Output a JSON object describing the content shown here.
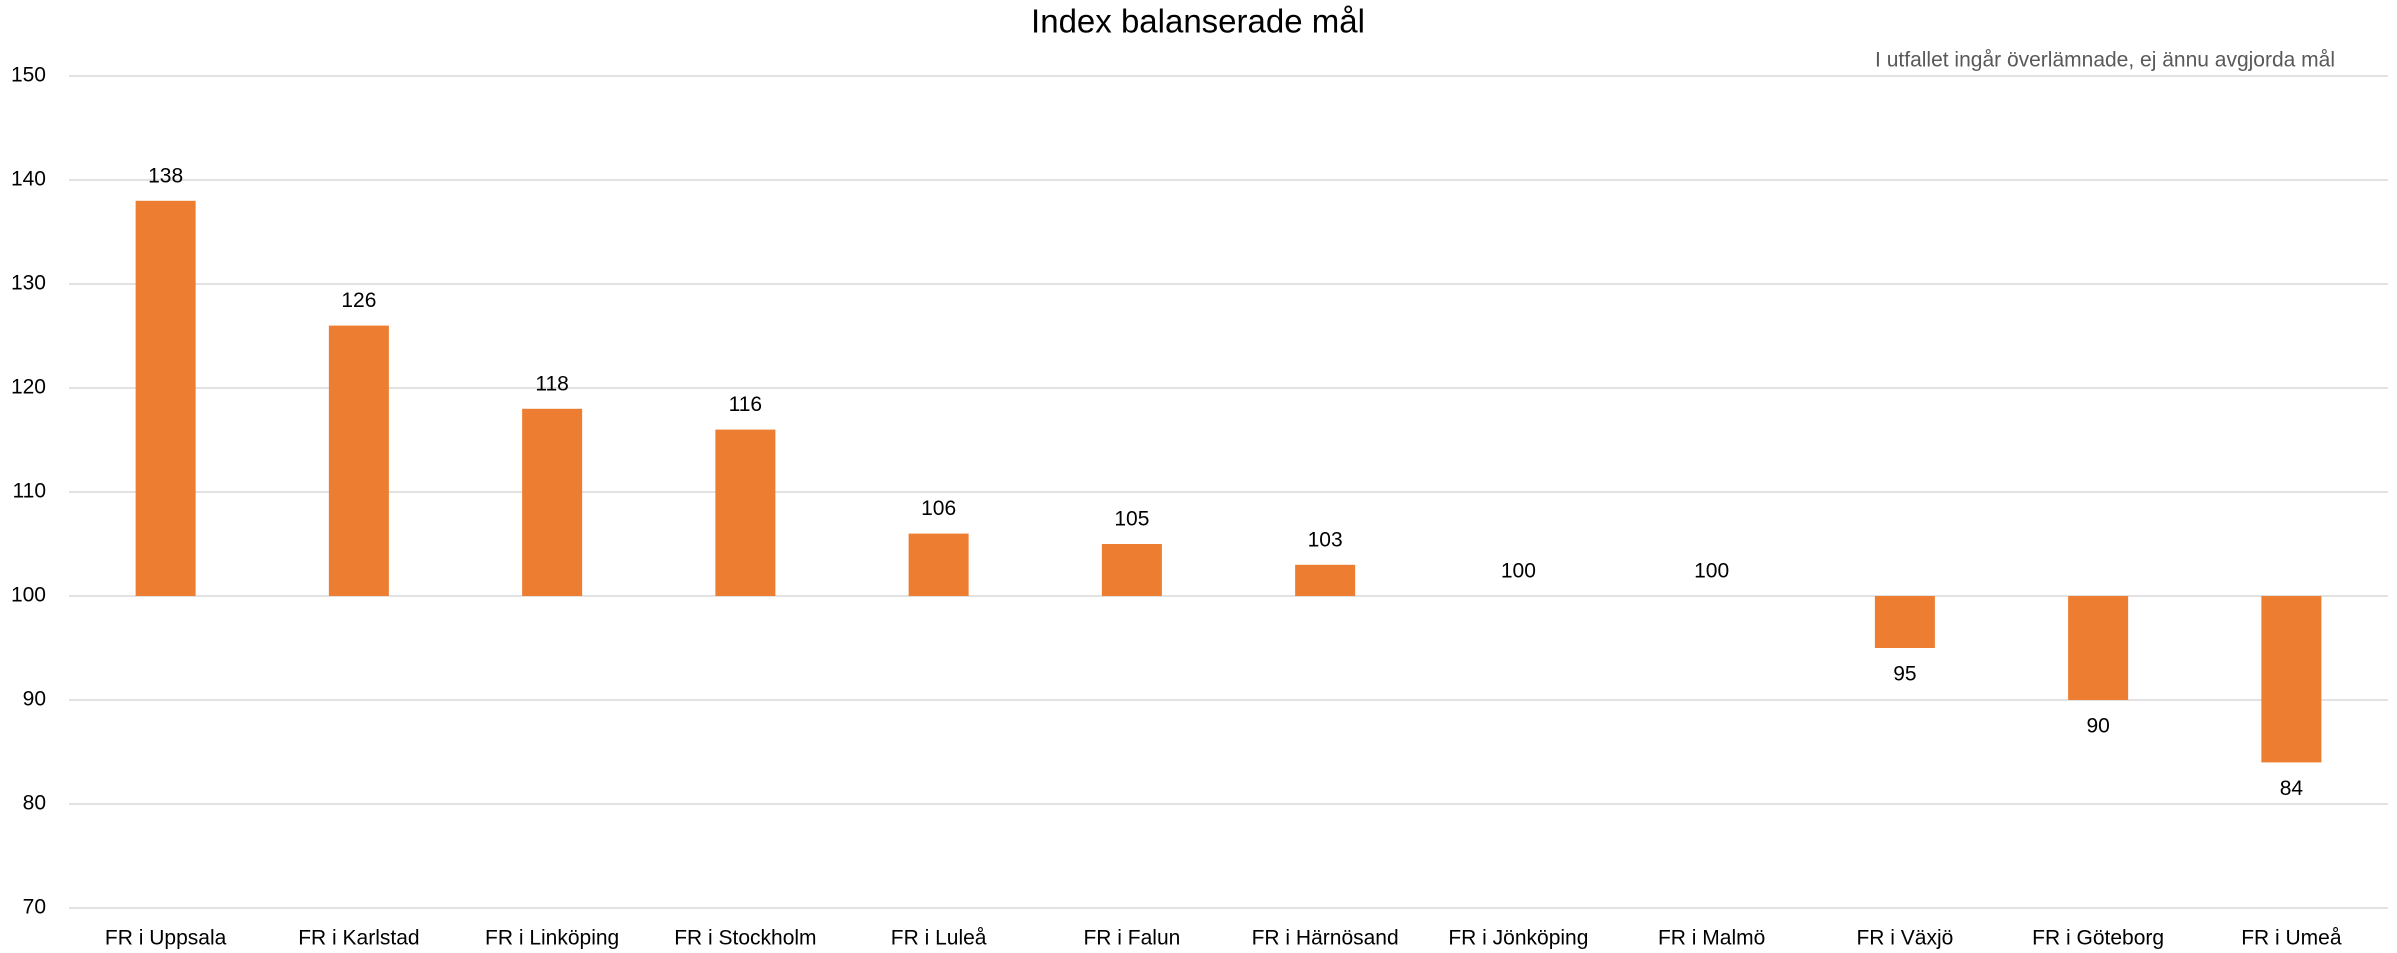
{
  "chart_data": {
    "type": "bar",
    "title": "Index balanserade mål",
    "annotation": "I utfallet ingår överlämnade, ej ännu avgjorda mål",
    "categories": [
      "FR i Uppsala",
      "FR i Karlstad",
      "FR i Linköping",
      "FR i Stockholm",
      "FR i Luleå",
      "FR i Falun",
      "FR i Härnösand",
      "FR i Jönköping",
      "FR i Malmö",
      "FR i Växjö",
      "FR i Göteborg",
      "FR i Umeå"
    ],
    "values": [
      138,
      126,
      118,
      116,
      106,
      105,
      103,
      100,
      100,
      95,
      90,
      84
    ],
    "color": "#ed7d31",
    "bar_base": 100,
    "ylim": [
      70,
      150
    ],
    "yticks": [
      70,
      80,
      90,
      100,
      110,
      120,
      130,
      140,
      150
    ],
    "grid": true
  }
}
